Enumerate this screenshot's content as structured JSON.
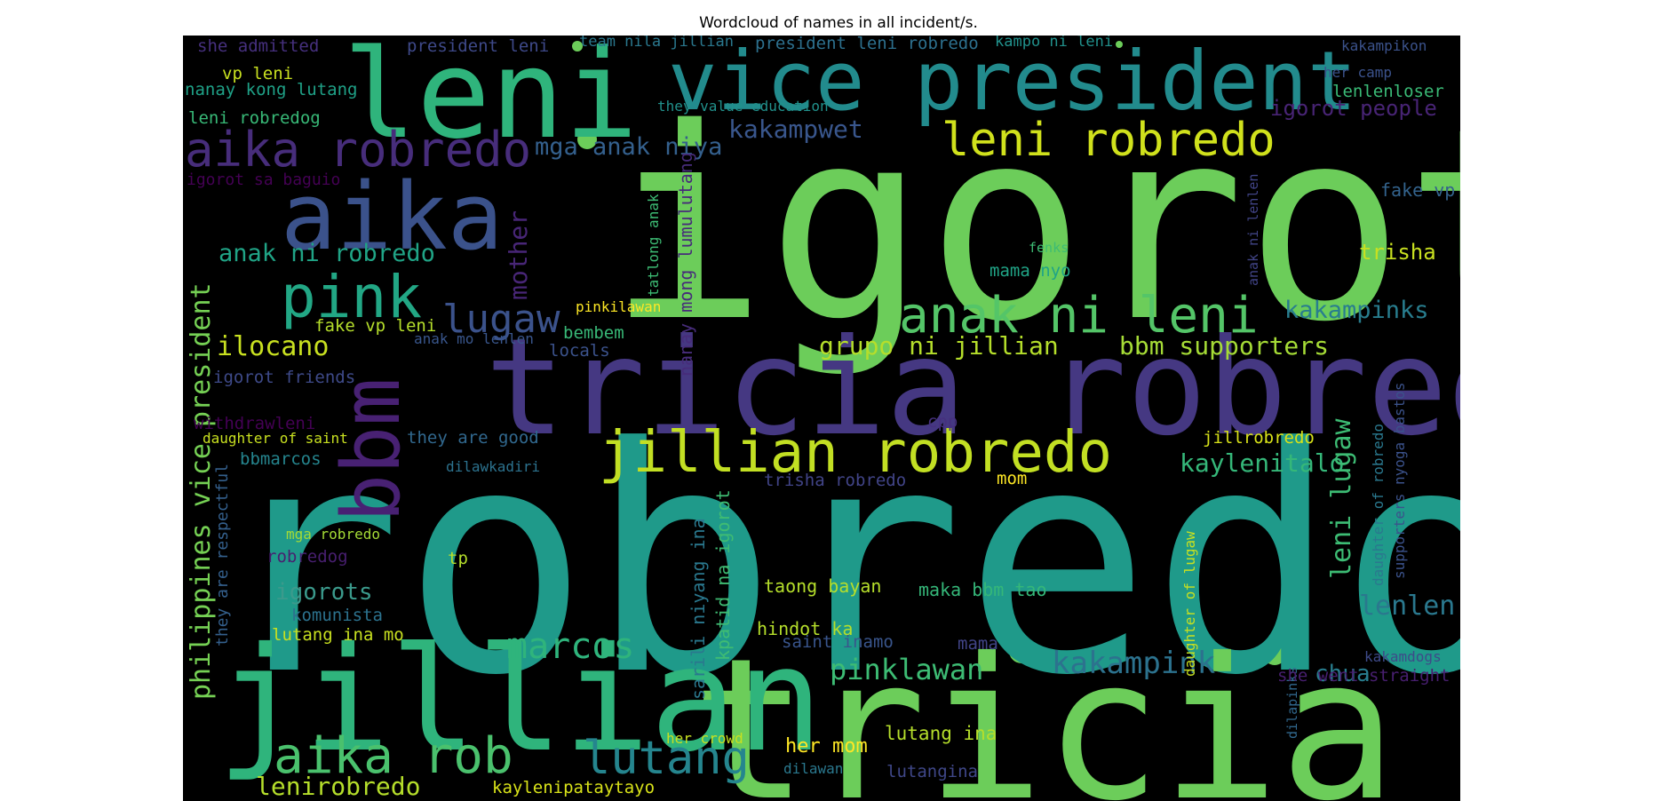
{
  "title": "Wordcloud of names in all incident/s.",
  "colors": {
    "background": "#000000",
    "dots": "#6ccd5a"
  },
  "words": [
    {
      "text": "igorot",
      "color": "#6ccd5a"
    },
    {
      "text": "robredo",
      "color": "#1f9a8a"
    },
    {
      "text": "tricia",
      "color": "#6ccd5a"
    },
    {
      "text": "tricia robredo",
      "color": "#453882"
    },
    {
      "text": "jillian",
      "color": "#2fb47c"
    },
    {
      "text": "leni",
      "color": "#2fb47c"
    },
    {
      "text": "vice president",
      "color": "#228b8d"
    },
    {
      "text": "aika",
      "color": "#3b528b"
    },
    {
      "text": "bbm",
      "color": "#482173"
    },
    {
      "text": "jillian robredo",
      "color": "#c2df23"
    },
    {
      "text": "aika robredo",
      "color": "#472d7b"
    },
    {
      "text": "anak ni leni",
      "color": "#54c568"
    },
    {
      "text": "leni robredo",
      "color": "#d0e11c"
    },
    {
      "text": "pink",
      "color": "#22a785"
    },
    {
      "text": "aika rob",
      "color": "#4ac16d"
    },
    {
      "text": "lutang",
      "color": "#25858e"
    },
    {
      "text": "marcos",
      "color": "#2fb47c"
    },
    {
      "text": "lugaw",
      "color": "#3b528b"
    },
    {
      "text": "philippines vice president",
      "color": "#75d054"
    },
    {
      "text": "anak ni robredo",
      "color": "#20a486"
    },
    {
      "text": "grupo ni jillian",
      "color": "#b5de2b"
    },
    {
      "text": "bbm supporters",
      "color": "#a5db36"
    },
    {
      "text": "kakampink",
      "color": "#2c728e"
    },
    {
      "text": "kakampinks",
      "color": "#287d8e"
    },
    {
      "text": "kaylenitalo",
      "color": "#35b779"
    },
    {
      "text": "leni lugaw",
      "color": "#3dbc74"
    },
    {
      "text": "ilocano",
      "color": "#c8e020"
    },
    {
      "text": "lenirobredo",
      "color": "#b5de2b"
    },
    {
      "text": "pinklawan",
      "color": "#3dbc74"
    },
    {
      "text": "lenlen",
      "color": "#2a788e"
    },
    {
      "text": "mother",
      "color": "#482677"
    },
    {
      "text": "mga anak niya",
      "color": "#34608d"
    },
    {
      "text": "kakampwet",
      "color": "#39568c"
    },
    {
      "text": "igorots",
      "color": "#3b9a8c"
    },
    {
      "text": "trisha",
      "color": "#c8e020"
    },
    {
      "text": "chua",
      "color": "#287d8e"
    },
    {
      "text": "lutang ina",
      "color": "#b5de2b"
    },
    {
      "text": "her mom",
      "color": "#fde725"
    },
    {
      "text": "igorot people",
      "color": "#482475"
    },
    {
      "text": "fake vp",
      "color": "#33638d"
    },
    {
      "text": "nanay mong lumulutang",
      "color": "#472c7a"
    },
    {
      "text": "kpatid na igorot",
      "color": "#3fbc73"
    },
    {
      "text": "sarili niyang ina",
      "color": "#2a788e"
    },
    {
      "text": "taong bayan",
      "color": "#b5de2b"
    },
    {
      "text": "maka bbm tao",
      "color": "#35b779"
    },
    {
      "text": "hindot ka",
      "color": "#b5de2b"
    },
    {
      "text": "saint inamo",
      "color": "#39558c"
    },
    {
      "text": "mama",
      "color": "#414487"
    },
    {
      "text": "lutangina",
      "color": "#3f4788"
    },
    {
      "text": "kaylenipataytayo",
      "color": "#d8e219"
    },
    {
      "text": "komunista",
      "color": "#2c728e"
    },
    {
      "text": "lutang ina mo",
      "color": "#c8e020"
    },
    {
      "text": "they are respectful",
      "color": "#34608d"
    },
    {
      "text": "vp leni",
      "color": "#c8e020"
    },
    {
      "text": "nanay kong lutang",
      "color": "#1fa187"
    },
    {
      "text": "leni robredog",
      "color": "#38b977"
    },
    {
      "text": "igorot sa baguio",
      "color": "#440154"
    },
    {
      "text": "she admitted",
      "color": "#46307e"
    },
    {
      "text": "president leni",
      "color": "#3e4989"
    },
    {
      "text": "team nila jillian",
      "color": "#2a788e"
    },
    {
      "text": "president leni robredo",
      "color": "#2d708e"
    },
    {
      "text": "kampo ni leni",
      "color": "#21918c"
    },
    {
      "text": "kakampikon",
      "color": "#3b528b"
    },
    {
      "text": "her camp",
      "color": "#3b528b"
    },
    {
      "text": "lenlenloser",
      "color": "#3aba76"
    },
    {
      "text": "they value education",
      "color": "#21918c"
    },
    {
      "text": "fake vp leni",
      "color": "#b5de2b"
    },
    {
      "text": "anak mo lenlen",
      "color": "#39568c"
    },
    {
      "text": "locals",
      "color": "#3b528b"
    },
    {
      "text": "bembem",
      "color": "#38b977"
    },
    {
      "text": "pinkilawan",
      "color": "#fde725"
    },
    {
      "text": "igorot friends",
      "color": "#3e4a89"
    },
    {
      "text": "withdrawleni",
      "color": "#440154"
    },
    {
      "text": "daughter of saint",
      "color": "#c8e020"
    },
    {
      "text": "bbmarcos",
      "color": "#25858e"
    },
    {
      "text": "dilawkadiri",
      "color": "#2c728e"
    },
    {
      "text": "they are good",
      "color": "#31688e"
    },
    {
      "text": "trisha robredo",
      "color": "#414487"
    },
    {
      "text": "mom",
      "color": "#fde725"
    },
    {
      "text": "cpp",
      "color": "#46307e"
    },
    {
      "text": "jillrobredo",
      "color": "#d8e219"
    },
    {
      "text": "mga robredo",
      "color": "#a5db36"
    },
    {
      "text": "robredog",
      "color": "#481f70"
    },
    {
      "text": "tp",
      "color": "#b5de2b"
    },
    {
      "text": "mama nyo",
      "color": "#20a486"
    },
    {
      "text": "fenks",
      "color": "#3dbc74"
    },
    {
      "text": "tatlong anak",
      "color": "#3dbc74"
    },
    {
      "text": "anak ni lenlen",
      "color": "#414487"
    },
    {
      "text": "daughter of robredo",
      "color": "#2a788e"
    },
    {
      "text": "supporters nyoga bastos",
      "color": "#3b528b"
    },
    {
      "text": "daughter of lugaw",
      "color": "#c8e020"
    },
    {
      "text": "dilapinks",
      "color": "#31688e"
    },
    {
      "text": "kakamdogs",
      "color": "#3e4a89"
    },
    {
      "text": "she went straight",
      "color": "#481f70"
    },
    {
      "text": "her crowd",
      "color": "#c8e020"
    },
    {
      "text": "dilawan",
      "color": "#2a788e"
    }
  ]
}
